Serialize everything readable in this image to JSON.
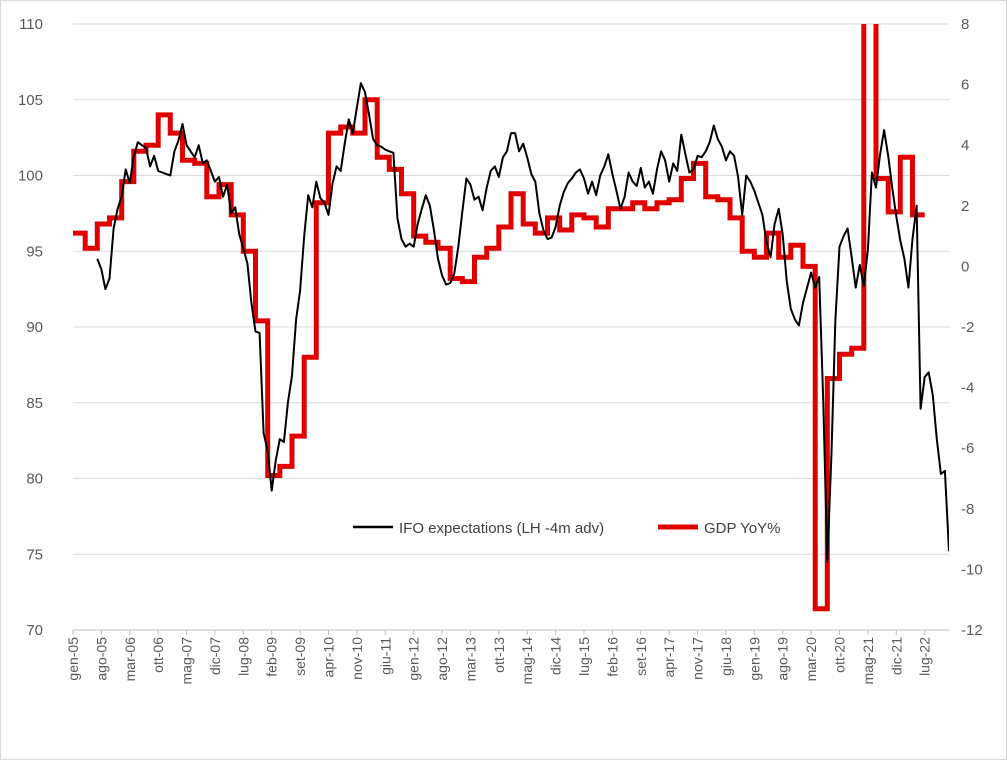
{
  "chart_data": {
    "type": "line",
    "title": "",
    "grid": true,
    "legend_position": "inside-bottom-center",
    "x_axis": {
      "tick_labels": [
        "gen-05",
        "ago-05",
        "mar-06",
        "ott-06",
        "mag-07",
        "dic-07",
        "lug-08",
        "feb-09",
        "set-09",
        "apr-10",
        "nov-10",
        "giu-11",
        "gen-12",
        "ago-12",
        "mar-13",
        "ott-13",
        "mag-14",
        "dic-14",
        "lug-15",
        "feb-16",
        "set-16",
        "apr-17",
        "nov-17",
        "giu-18",
        "gen-19",
        "ago-19",
        "mar-20",
        "ott-20",
        "mag-21",
        "dic-21",
        "lug-22"
      ],
      "range": [
        "2005-01",
        "2022-12"
      ]
    },
    "y_left": {
      "ticks": [
        70,
        75,
        80,
        85,
        90,
        95,
        100,
        105,
        110
      ],
      "ylim": [
        70,
        110
      ]
    },
    "y_right": {
      "ticks": [
        -12,
        -10,
        -8,
        -6,
        -4,
        -2,
        0,
        2,
        4,
        6,
        8
      ],
      "ylim": [
        -12,
        8
      ]
    },
    "series": [
      {
        "name": "IFO expectations (LH -4m adv)",
        "axis": "left",
        "color": "#000000",
        "points": [
          [
            "2005-07",
            94.5
          ],
          [
            "2005-08",
            93.8
          ],
          [
            "2005-09",
            92.5
          ],
          [
            "2005-10",
            93.2
          ],
          [
            "2005-11",
            96.5
          ],
          [
            "2005-12",
            97.8
          ],
          [
            "2006-01",
            98.6
          ],
          [
            "2006-02",
            100.4
          ],
          [
            "2006-03",
            99.5
          ],
          [
            "2006-04",
            101.3
          ],
          [
            "2006-05",
            102.2
          ],
          [
            "2006-06",
            102.0
          ],
          [
            "2006-07",
            101.8
          ],
          [
            "2006-08",
            100.6
          ],
          [
            "2006-09",
            101.3
          ],
          [
            "2006-10",
            100.3
          ],
          [
            "2006-11",
            100.2
          ],
          [
            "2006-12",
            100.1
          ],
          [
            "2006-13",
            100.0
          ],
          [
            "2007-02",
            101.6
          ],
          [
            "2007-03",
            102.3
          ],
          [
            "2007-04",
            103.4
          ],
          [
            "2007-05",
            102.0
          ],
          [
            "2007-06",
            101.6
          ],
          [
            "2007-07",
            101.2
          ],
          [
            "2007-08",
            102.0
          ],
          [
            "2007-09",
            100.8
          ],
          [
            "2007-10",
            101.0
          ],
          [
            "2007-11",
            100.3
          ],
          [
            "2007-12",
            99.6
          ],
          [
            "2008-01",
            99.9
          ],
          [
            "2008-02",
            98.6
          ],
          [
            "2008-03",
            99.4
          ],
          [
            "2008-04",
            97.5
          ],
          [
            "2008-05",
            97.9
          ],
          [
            "2008-06",
            96.1
          ],
          [
            "2008-07",
            95.2
          ],
          [
            "2008-08",
            94.2
          ],
          [
            "2008-09",
            91.6
          ],
          [
            "2008-10",
            89.7
          ],
          [
            "2008-11",
            89.6
          ],
          [
            "2008-12",
            83.0
          ],
          [
            "2009-01",
            81.8
          ],
          [
            "2009-02",
            79.2
          ],
          [
            "2009-03",
            81.2
          ],
          [
            "2009-04",
            82.6
          ],
          [
            "2009-05",
            82.4
          ],
          [
            "2009-06",
            85.0
          ],
          [
            "2009-07",
            86.8
          ],
          [
            "2009-08",
            90.5
          ],
          [
            "2009-09",
            92.4
          ],
          [
            "2009-10",
            96.0
          ],
          [
            "2009-11",
            98.7
          ],
          [
            "2009-12",
            97.9
          ],
          [
            "2010-01",
            99.6
          ],
          [
            "2010-02",
            98.5
          ],
          [
            "2010-03",
            98.2
          ],
          [
            "2010-04",
            97.4
          ],
          [
            "2010-05",
            99.5
          ],
          [
            "2010-06",
            100.6
          ],
          [
            "2010-07",
            100.3
          ],
          [
            "2010-08",
            102.1
          ],
          [
            "2010-09",
            103.7
          ],
          [
            "2010-10",
            102.8
          ],
          [
            "2010-11",
            104.5
          ],
          [
            "2010-12",
            106.1
          ],
          [
            "2011-01",
            105.5
          ],
          [
            "2011-02",
            104.0
          ],
          [
            "2011-03",
            102.4
          ],
          [
            "2011-04",
            102.0
          ],
          [
            "2011-05",
            101.9
          ],
          [
            "2011-06",
            101.7
          ],
          [
            "2011-07",
            101.6
          ],
          [
            "2011-08",
            101.5
          ],
          [
            "2011-09",
            97.2
          ],
          [
            "2011-10",
            95.8
          ],
          [
            "2011-11",
            95.3
          ],
          [
            "2011-12",
            95.5
          ],
          [
            "2012-01",
            95.3
          ],
          [
            "2012-02",
            96.8
          ],
          [
            "2012-03",
            97.8
          ],
          [
            "2012-04",
            98.7
          ],
          [
            "2012-05",
            98.0
          ],
          [
            "2012-06",
            96.4
          ],
          [
            "2012-07",
            94.5
          ],
          [
            "2012-08",
            93.4
          ],
          [
            "2012-09",
            92.8
          ],
          [
            "2012-10",
            92.9
          ],
          [
            "2012-11",
            93.5
          ],
          [
            "2012-12",
            95.3
          ],
          [
            "2013-01",
            97.6
          ],
          [
            "2013-02",
            99.8
          ],
          [
            "2013-03",
            99.4
          ],
          [
            "2013-04",
            98.4
          ],
          [
            "2013-05",
            98.6
          ],
          [
            "2013-06",
            97.7
          ],
          [
            "2013-07",
            99.2
          ],
          [
            "2013-08",
            100.3
          ],
          [
            "2013-09",
            100.6
          ],
          [
            "2013-10",
            99.9
          ],
          [
            "2013-11",
            101.2
          ],
          [
            "2013-12",
            101.6
          ],
          [
            "2014-01",
            102.8
          ],
          [
            "2014-02",
            102.8
          ],
          [
            "2014-03",
            101.6
          ],
          [
            "2014-04",
            102.1
          ],
          [
            "2014-05",
            101.2
          ],
          [
            "2014-06",
            100.1
          ],
          [
            "2014-07",
            99.6
          ],
          [
            "2014-08",
            97.5
          ],
          [
            "2014-09",
            96.4
          ],
          [
            "2014-10",
            95.8
          ],
          [
            "2014-11",
            95.9
          ],
          [
            "2014-12",
            96.6
          ],
          [
            "2015-01",
            98.0
          ],
          [
            "2015-02",
            98.9
          ],
          [
            "2015-03",
            99.5
          ],
          [
            "2015-04",
            99.8
          ],
          [
            "2015-05",
            100.2
          ],
          [
            "2015-06",
            100.4
          ],
          [
            "2015-07",
            99.8
          ],
          [
            "2015-08",
            98.8
          ],
          [
            "2015-09",
            99.6
          ],
          [
            "2015-10",
            98.7
          ],
          [
            "2015-11",
            100.0
          ],
          [
            "2015-12",
            100.6
          ],
          [
            "2016-01",
            101.4
          ],
          [
            "2016-02",
            100.1
          ],
          [
            "2016-03",
            99.0
          ],
          [
            "2016-04",
            97.8
          ],
          [
            "2016-05",
            98.6
          ],
          [
            "2016-06",
            100.2
          ],
          [
            "2016-07",
            99.6
          ],
          [
            "2016-08",
            99.3
          ],
          [
            "2016-09",
            100.5
          ],
          [
            "2016-10",
            99.2
          ],
          [
            "2016-11",
            99.6
          ],
          [
            "2016-12",
            98.8
          ],
          [
            "2017-01",
            100.4
          ],
          [
            "2017-02",
            101.6
          ],
          [
            "2017-03",
            101.0
          ],
          [
            "2017-04",
            99.6
          ],
          [
            "2017-05",
            100.8
          ],
          [
            "2017-06",
            100.3
          ],
          [
            "2017-07",
            102.7
          ],
          [
            "2017-08",
            101.4
          ],
          [
            "2017-09",
            100.2
          ],
          [
            "2017-10",
            100.4
          ],
          [
            "2017-11",
            101.3
          ],
          [
            "2017-12",
            101.2
          ],
          [
            "2018-01",
            101.6
          ],
          [
            "2018-02",
            102.2
          ],
          [
            "2018-03",
            103.3
          ],
          [
            "2018-04",
            102.4
          ],
          [
            "2018-05",
            101.9
          ],
          [
            "2018-06",
            101.0
          ],
          [
            "2018-07",
            101.6
          ],
          [
            "2018-08",
            101.3
          ],
          [
            "2018-09",
            99.9
          ],
          [
            "2018-10",
            97.4
          ],
          [
            "2018-11",
            100.0
          ],
          [
            "2018-12",
            99.6
          ],
          [
            "2019-01",
            99.0
          ],
          [
            "2019-02",
            98.2
          ],
          [
            "2019-03",
            97.4
          ],
          [
            "2019-04",
            95.6
          ],
          [
            "2019-05",
            94.6
          ],
          [
            "2019-06",
            96.8
          ],
          [
            "2019-07",
            97.8
          ],
          [
            "2019-08",
            96.1
          ],
          [
            "2019-09",
            93.0
          ],
          [
            "2019-10",
            91.2
          ],
          [
            "2019-11",
            90.5
          ],
          [
            "2019-12",
            90.1
          ],
          [
            "2020-01",
            91.6
          ],
          [
            "2020-02",
            92.6
          ],
          [
            "2020-03",
            93.6
          ],
          [
            "2020-04",
            92.6
          ],
          [
            "2020-05",
            93.3
          ],
          [
            "2020-06",
            85.0
          ],
          [
            "2020-07",
            74.5
          ],
          [
            "2020-08",
            81.5
          ],
          [
            "2020-09",
            90.5
          ],
          [
            "2020-10",
            95.3
          ],
          [
            "2020-11",
            96.0
          ],
          [
            "2020-12",
            96.5
          ],
          [
            "2021-01",
            94.6
          ],
          [
            "2021-02",
            92.6
          ],
          [
            "2021-03",
            94.1
          ],
          [
            "2021-04",
            92.7
          ],
          [
            "2021-05",
            95.1
          ],
          [
            "2021-06",
            100.2
          ],
          [
            "2021-07",
            99.2
          ],
          [
            "2021-08",
            101.4
          ],
          [
            "2021-09",
            103.0
          ],
          [
            "2021-10",
            101.3
          ],
          [
            "2021-11",
            99.2
          ],
          [
            "2021-12",
            97.3
          ],
          [
            "2022-01",
            95.7
          ],
          [
            "2022-02",
            94.5
          ],
          [
            "2022-03",
            92.6
          ],
          [
            "2022-04",
            95.8
          ],
          [
            "2022-05",
            98.0
          ],
          [
            "2022-06",
            84.6
          ],
          [
            "2022-07",
            86.7
          ],
          [
            "2022-08",
            87.0
          ],
          [
            "2022-09",
            85.5
          ],
          [
            "2022-10",
            82.6
          ],
          [
            "2022-11",
            80.3
          ],
          [
            "2022-12",
            80.5
          ],
          [
            "2023-01",
            75.2
          ]
        ]
      },
      {
        "name": "GDP YoY%",
        "axis": "right",
        "color": "#e00000",
        "step": "quarterly",
        "quarters": [
          [
            "2005-01",
            1.1
          ],
          [
            "2005-04",
            0.6
          ],
          [
            "2005-07",
            1.4
          ],
          [
            "2005-10",
            1.6
          ],
          [
            "2006-01",
            2.8
          ],
          [
            "2006-04",
            3.8
          ],
          [
            "2006-07",
            4.0
          ],
          [
            "2006-10",
            5.0
          ],
          [
            "2007-01",
            4.4
          ],
          [
            "2007-04",
            3.5
          ],
          [
            "2007-07",
            3.4
          ],
          [
            "2007-10",
            2.3
          ],
          [
            "2008-01",
            2.7
          ],
          [
            "2008-04",
            1.7
          ],
          [
            "2008-07",
            0.5
          ],
          [
            "2008-10",
            -1.8
          ],
          [
            "2009-01",
            -6.9
          ],
          [
            "2009-04",
            -6.6
          ],
          [
            "2009-07",
            -5.6
          ],
          [
            "2009-10",
            -3.0
          ],
          [
            "2010-01",
            2.1
          ],
          [
            "2010-04",
            4.4
          ],
          [
            "2010-07",
            4.6
          ],
          [
            "2010-10",
            4.4
          ],
          [
            "2011-01",
            5.5
          ],
          [
            "2011-04",
            3.6
          ],
          [
            "2011-07",
            3.2
          ],
          [
            "2011-10",
            2.4
          ],
          [
            "2012-01",
            1.0
          ],
          [
            "2012-04",
            0.8
          ],
          [
            "2012-07",
            0.6
          ],
          [
            "2012-10",
            -0.4
          ],
          [
            "2013-01",
            -0.5
          ],
          [
            "2013-04",
            0.3
          ],
          [
            "2013-07",
            0.6
          ],
          [
            "2013-10",
            1.3
          ],
          [
            "2014-01",
            2.4
          ],
          [
            "2014-04",
            1.4
          ],
          [
            "2014-07",
            1.1
          ],
          [
            "2014-10",
            1.6
          ],
          [
            "2015-01",
            1.2
          ],
          [
            "2015-04",
            1.7
          ],
          [
            "2015-07",
            1.6
          ],
          [
            "2015-10",
            1.3
          ],
          [
            "2016-01",
            1.9
          ],
          [
            "2016-04",
            1.9
          ],
          [
            "2016-07",
            2.1
          ],
          [
            "2016-10",
            1.9
          ],
          [
            "2017-01",
            2.1
          ],
          [
            "2017-04",
            2.2
          ],
          [
            "2017-07",
            2.9
          ],
          [
            "2017-10",
            3.4
          ],
          [
            "2018-01",
            2.3
          ],
          [
            "2018-04",
            2.2
          ],
          [
            "2018-07",
            1.6
          ],
          [
            "2018-10",
            0.5
          ],
          [
            "2019-01",
            0.3
          ],
          [
            "2019-04",
            1.1
          ],
          [
            "2019-07",
            0.3
          ],
          [
            "2019-10",
            0.7
          ],
          [
            "2020-01",
            0.0
          ],
          [
            "2020-04",
            -11.3
          ],
          [
            "2020-07",
            -3.7
          ],
          [
            "2020-10",
            -2.9
          ],
          [
            "2021-01",
            -2.7
          ],
          [
            "2021-04",
            9.6
          ],
          [
            "2021-07",
            2.9
          ],
          [
            "2021-10",
            1.8
          ],
          [
            "2022-01",
            3.6
          ],
          [
            "2022-04",
            1.7
          ]
        ]
      }
    ]
  }
}
